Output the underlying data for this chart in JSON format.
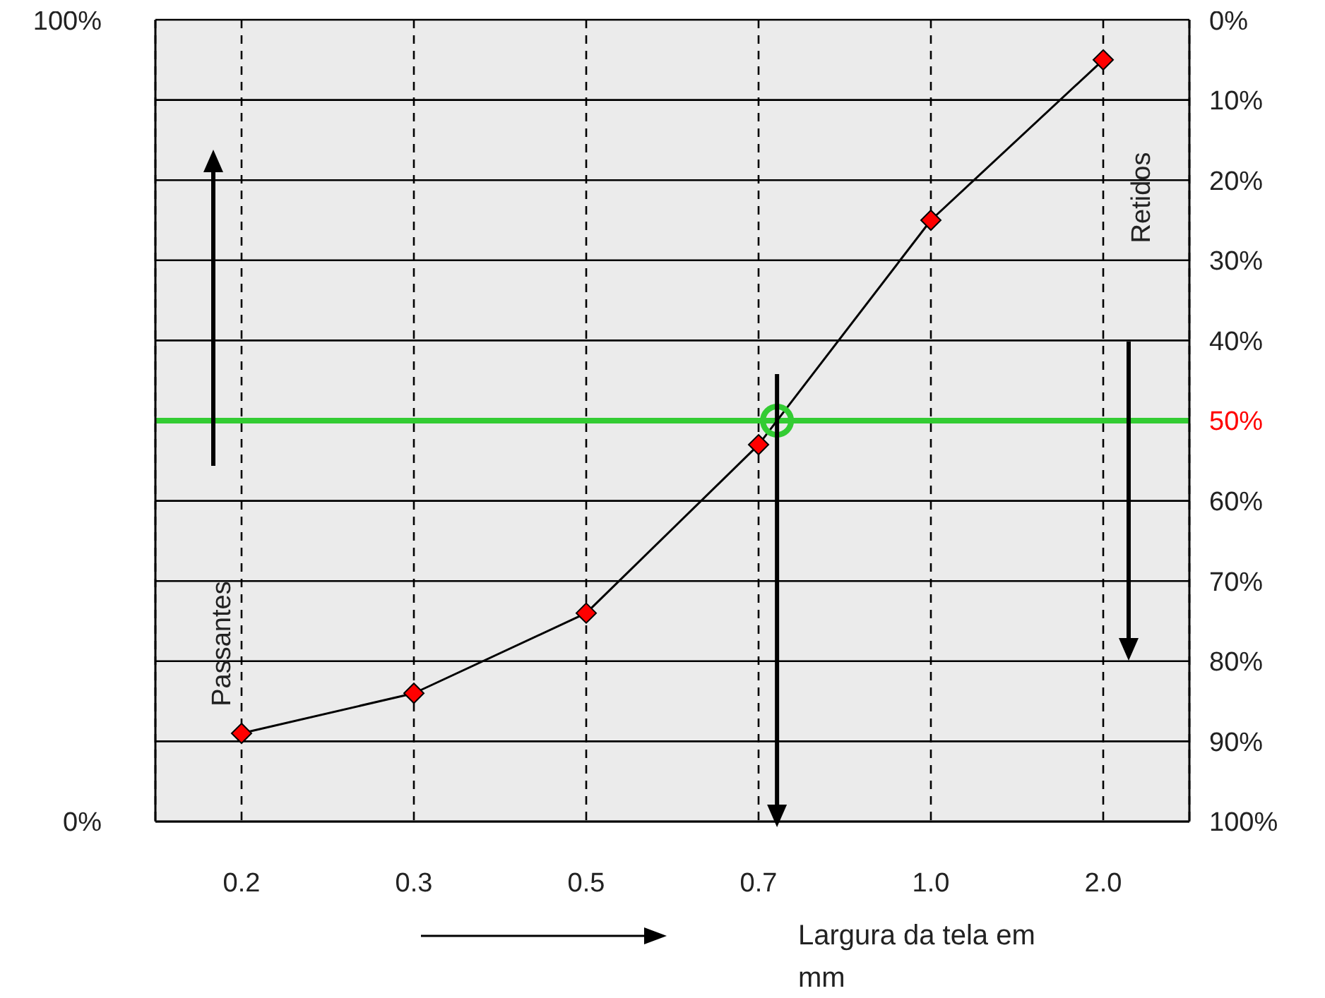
{
  "chart_data": {
    "type": "line",
    "xlabel": "Largura da tela em mm",
    "categories": [
      "0.2",
      "0.3",
      "0.5",
      "0.7",
      "1.0",
      "2.0"
    ],
    "series": [
      {
        "color": "#ff0000",
        "values": [
          11,
          16,
          26,
          47,
          75,
          95
        ]
      }
    ],
    "ylim": [
      0,
      100
    ],
    "yticks": [
      {
        "value": 0,
        "label": "0%"
      },
      {
        "value": 100,
        "label": "100%"
      }
    ],
    "y2lim": [
      100,
      0
    ],
    "y2ticks": [
      {
        "value": 0,
        "label": "0%"
      },
      {
        "value": 10,
        "label": "10%"
      },
      {
        "value": 20,
        "label": "20%"
      },
      {
        "value": 30,
        "label": "30%"
      },
      {
        "value": 40,
        "label": "40%"
      },
      {
        "value": 60,
        "label": "60%"
      },
      {
        "value": 70,
        "label": "70%"
      },
      {
        "value": 80,
        "label": "80%"
      },
      {
        "value": 90,
        "label": "90%"
      },
      {
        "value": 100,
        "label": "100%"
      }
    ],
    "ref_lines": [
      {
        "axis": "y2",
        "value": 50,
        "label": "50%",
        "color": "#33cc33"
      }
    ],
    "annotations": [
      "Passantes",
      "Retidos"
    ],
    "grid": true,
    "marker": "diamond",
    "line_style": "solid",
    "legend": false
  }
}
